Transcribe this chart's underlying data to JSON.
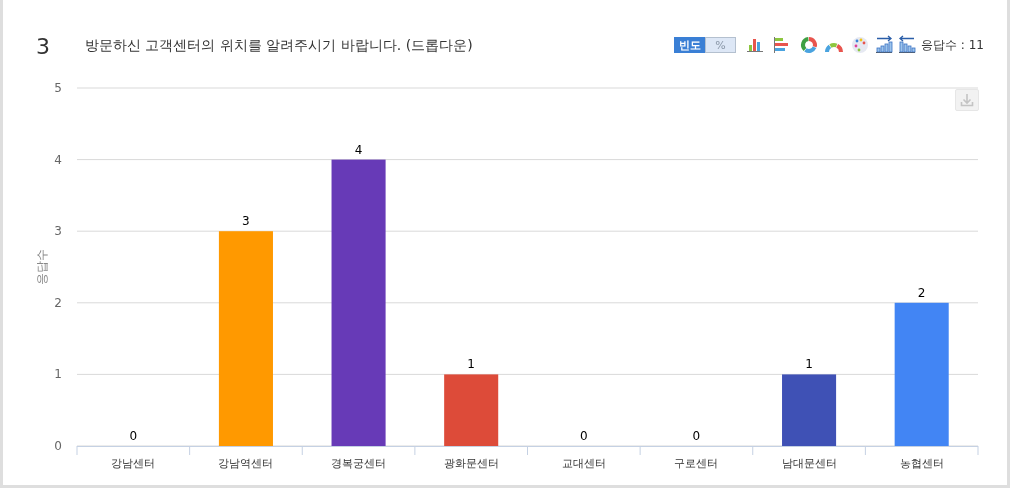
{
  "chart_data": {
    "type": "bar",
    "title": "방문하신 고객센터의 위치를 알려주시기 바랍니다. (드롭다운)",
    "ylabel": "응답수",
    "categories": [
      "강남센터",
      "강남역센터",
      "경복궁센터",
      "광화문센터",
      "교대센터",
      "구로센터",
      "남대문센터",
      "농협센터"
    ],
    "values": [
      0,
      3,
      4,
      1,
      0,
      0,
      1,
      2
    ],
    "colors": [
      null,
      "#ff9900",
      "#673ab7",
      "#dd4b39",
      null,
      null,
      "#3f51b5",
      "#4285f4"
    ],
    "ylim": [
      0,
      5
    ],
    "yticks": [
      0,
      1,
      2,
      3,
      4,
      5
    ],
    "grid": "y",
    "data_labels": true,
    "annotations": [
      "3",
      "빈도",
      "%",
      "응답수 : 11"
    ]
  }
}
